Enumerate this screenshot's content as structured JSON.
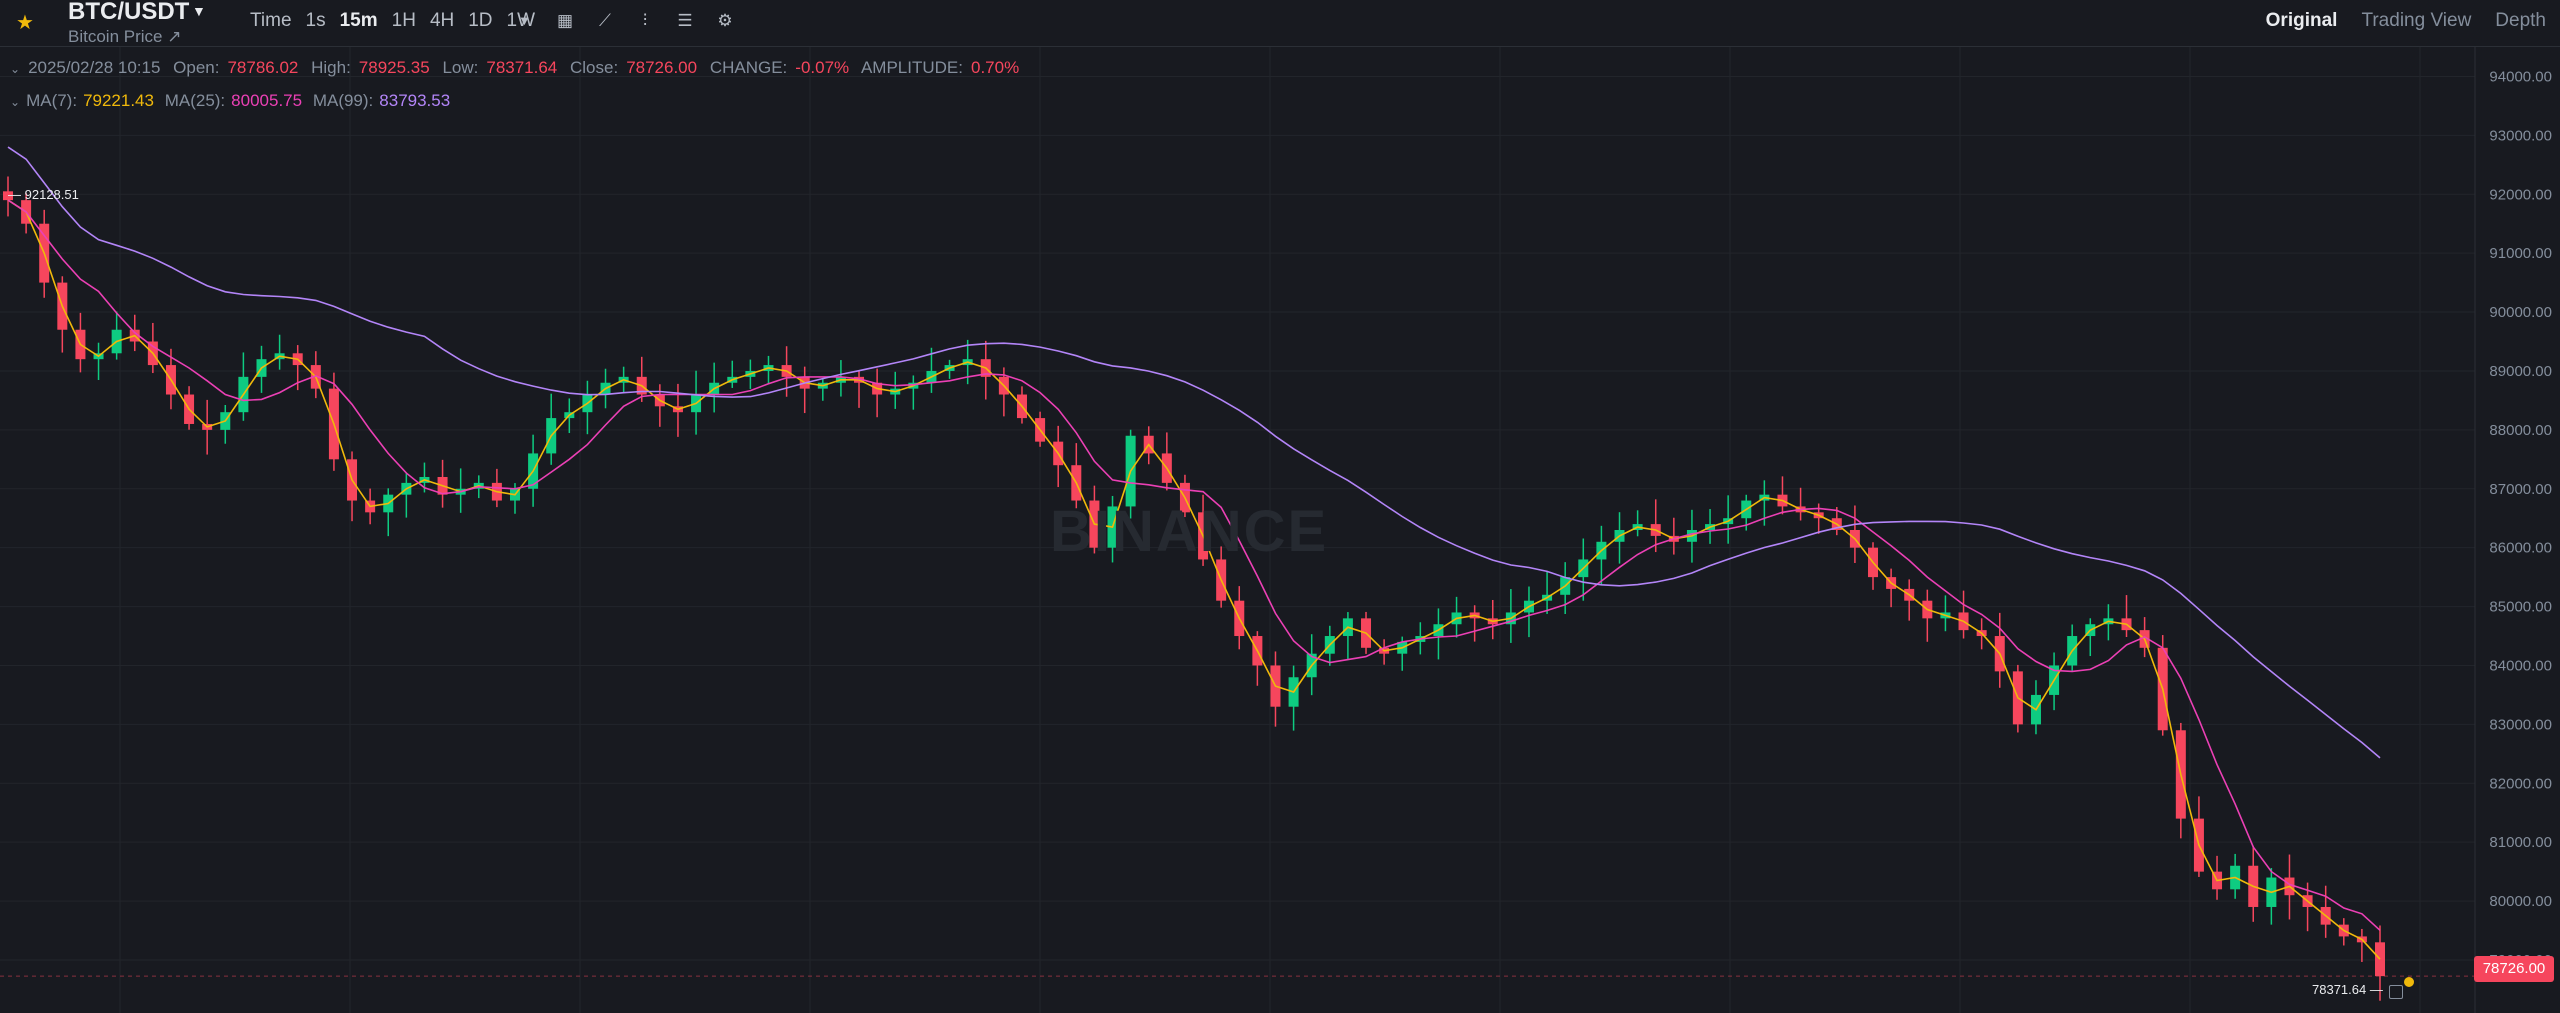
{
  "header": {
    "symbol": "BTC/USDT",
    "subtitle": "Bitcoin Price ↗",
    "intervals": [
      "Time",
      "1s",
      "15m",
      "1H",
      "4H",
      "1D",
      "1W"
    ],
    "active_interval": "15m",
    "views": [
      "Original",
      "Trading View",
      "Depth"
    ],
    "active_view": "Original"
  },
  "ohlc": {
    "datetime": "2025/02/28 10:15",
    "open_label": "Open:",
    "open": "78786.02",
    "high_label": "High:",
    "high": "78925.35",
    "low_label": "Low:",
    "low": "78371.64",
    "close_label": "Close:",
    "close": "78726.00",
    "change_label": "CHANGE:",
    "change": "-0.07%",
    "amplitude_label": "AMPLITUDE:",
    "amplitude": "0.70%"
  },
  "ma": {
    "ma7_label": "MA(7):",
    "ma7": "79221.43",
    "ma25_label": "MA(25):",
    "ma25": "80005.75",
    "ma99_label": "MA(99):",
    "ma99": "83793.53"
  },
  "chart": {
    "current_price": "78726.00",
    "high_marker": "92128.51",
    "low_marker": "78371.64",
    "watermark": "BINANCE",
    "colors": {
      "up": "#0ecb81",
      "down": "#f6465d",
      "ma7": "#f0b90b",
      "ma25": "#eb40b5",
      "ma99": "#b385f8"
    }
  },
  "chart_data": {
    "type": "candlestick",
    "y_ticks": [
      "94000.00",
      "93000.00",
      "92000.00",
      "91000.00",
      "90000.00",
      "89000.00",
      "88000.00",
      "87000.00",
      "86000.00",
      "85000.00",
      "84000.00",
      "83000.00",
      "82000.00",
      "81000.00",
      "80000.00",
      "79000.00"
    ],
    "ylim": [
      78100,
      94500
    ],
    "close_series": [
      91900,
      91500,
      90500,
      89700,
      89200,
      89300,
      89700,
      89500,
      89100,
      88600,
      88100,
      88000,
      88300,
      88900,
      89200,
      89300,
      89100,
      88700,
      87500,
      86800,
      86600,
      86900,
      87100,
      87200,
      86900,
      87000,
      87100,
      86800,
      87000,
      87600,
      88200,
      88300,
      88600,
      88800,
      88900,
      88600,
      88400,
      88300,
      88600,
      88800,
      88900,
      89000,
      89100,
      88900,
      88700,
      88800,
      88900,
      88800,
      88600,
      88700,
      88800,
      89000,
      89100,
      89200,
      88900,
      88600,
      88200,
      87800,
      87400,
      86800,
      86000,
      86700,
      87900,
      87600,
      87100,
      86600,
      85800,
      85100,
      84500,
      84000,
      83300,
      83800,
      84200,
      84500,
      84800,
      84300,
      84200,
      84400,
      84500,
      84700,
      84900,
      84800,
      84700,
      84900,
      85100,
      85200,
      85500,
      85800,
      86100,
      86300,
      86400,
      86200,
      86100,
      86300,
      86400,
      86500,
      86800,
      86900,
      86700,
      86600,
      86500,
      86300,
      86000,
      85500,
      85300,
      85100,
      84800,
      84900,
      84600,
      84500,
      83900,
      83000,
      83500,
      84000,
      84500,
      84700,
      84800,
      84600,
      84300,
      82900,
      81400,
      80500,
      80200,
      80600,
      79900,
      80400,
      80100,
      79900,
      79600,
      79400,
      79300,
      78726
    ]
  }
}
